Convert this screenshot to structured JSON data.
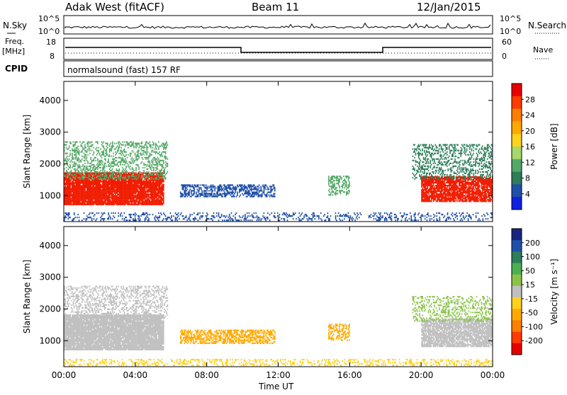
{
  "header": {
    "station": "Adak West (fitACF)",
    "beam": "Beam 11",
    "date": "12/Jan/2015"
  },
  "top_panels": {
    "nsky_label": "N.Sky",
    "nsky_ticks": [
      "10^5",
      "10^0"
    ],
    "nsearch_label": "N.Search",
    "nsearch_ticks": [
      "10^5",
      "10^0"
    ],
    "freq_label_line1": "Freq.",
    "freq_label_line2": "[MHz]",
    "freq_ticks": [
      "18",
      "8"
    ],
    "nave_label": "Nave",
    "nave_ticks": [
      "60",
      "0"
    ],
    "cpid_label": "CPID",
    "cpid_text": "normalsound (fast) 157 RF"
  },
  "chart_data": [
    {
      "type": "heatmap",
      "name": "power",
      "ylabel": "Slant Range [km]",
      "ylim": [
        180,
        4600
      ],
      "yticks": [
        "4000",
        "3000",
        "2000",
        "1000"
      ],
      "xticks": [
        "00:00",
        "04:00",
        "08:00",
        "12:00",
        "16:00",
        "20:00",
        "00:00"
      ],
      "colorbar": {
        "label": "Power [dB]",
        "ticks": [
          "28",
          "24",
          "20",
          "16",
          "12",
          "8",
          "4"
        ],
        "colors": [
          "#e80000",
          "#ff3b00",
          "#ff7f00",
          "#ffaa00",
          "#ffd21e",
          "#a6d96a",
          "#55a868",
          "#2e7d5b",
          "#1f4fa8",
          "#1020e0"
        ]
      },
      "regions": [
        {
          "t0": 0.0,
          "t1": 5.6,
          "r0": 700,
          "r1": 1700,
          "color": "#f01c00",
          "density": 0.95
        },
        {
          "t0": 0.0,
          "t1": 5.8,
          "r0": 1500,
          "r1": 2700,
          "color": "#55a868",
          "density": 0.35
        },
        {
          "t0": 6.5,
          "t1": 11.8,
          "r0": 950,
          "r1": 1350,
          "color": "#1f4fa8",
          "density": 0.55
        },
        {
          "t0": 14.8,
          "t1": 16.0,
          "r0": 1000,
          "r1": 1600,
          "color": "#55a868",
          "density": 0.4
        },
        {
          "t0": 20.0,
          "t1": 24.0,
          "r0": 800,
          "r1": 1600,
          "color": "#f01c00",
          "density": 0.85
        },
        {
          "t0": 19.5,
          "t1": 24.0,
          "r0": 1500,
          "r1": 2600,
          "color": "#2e7d5b",
          "density": 0.35
        },
        {
          "t0": 0.0,
          "t1": 24.0,
          "r0": 200,
          "r1": 450,
          "color": "#1f4fa8",
          "density": 0.25
        }
      ]
    },
    {
      "type": "heatmap",
      "name": "velocity",
      "ylabel": "Slant Range [km]",
      "ylim": [
        180,
        4600
      ],
      "yticks": [
        "4000",
        "3000",
        "2000",
        "1000"
      ],
      "xticks": [
        "00:00",
        "04:00",
        "08:00",
        "12:00",
        "16:00",
        "20:00",
        "00:00"
      ],
      "xlabel": "Time UT",
      "colorbar": {
        "label": "Velocity [m s⁻¹]",
        "ticks": [
          "200",
          "100",
          "50",
          "15",
          "-15",
          "-50",
          "-100",
          "-200"
        ],
        "colors": [
          "#1a237e",
          "#1f4fa8",
          "#2e7d5b",
          "#4caf50",
          "#8bc34a",
          "#c0c0c0",
          "#ffd21e",
          "#ffaa00",
          "#ff7f00",
          "#ff3b00",
          "#e80000"
        ]
      },
      "regions": [
        {
          "t0": 0.0,
          "t1": 5.6,
          "r0": 700,
          "r1": 1800,
          "color": "#c0c0c0",
          "density": 0.95
        },
        {
          "t0": 0.0,
          "t1": 5.8,
          "r0": 1700,
          "r1": 2700,
          "color": "#c0c0c0",
          "density": 0.35
        },
        {
          "t0": 6.5,
          "t1": 11.8,
          "r0": 900,
          "r1": 1350,
          "color": "#ffaa00",
          "density": 0.6
        },
        {
          "t0": 14.8,
          "t1": 16.0,
          "r0": 1000,
          "r1": 1500,
          "color": "#ffaa00",
          "density": 0.4
        },
        {
          "t0": 20.0,
          "t1": 24.0,
          "r0": 800,
          "r1": 1700,
          "color": "#c0c0c0",
          "density": 0.85
        },
        {
          "t0": 19.5,
          "t1": 24.0,
          "r0": 1600,
          "r1": 2400,
          "color": "#8bc34a",
          "density": 0.3
        },
        {
          "t0": 0.0,
          "t1": 24.0,
          "r0": 200,
          "r1": 420,
          "color": "#ffd21e",
          "density": 0.3
        }
      ]
    }
  ]
}
